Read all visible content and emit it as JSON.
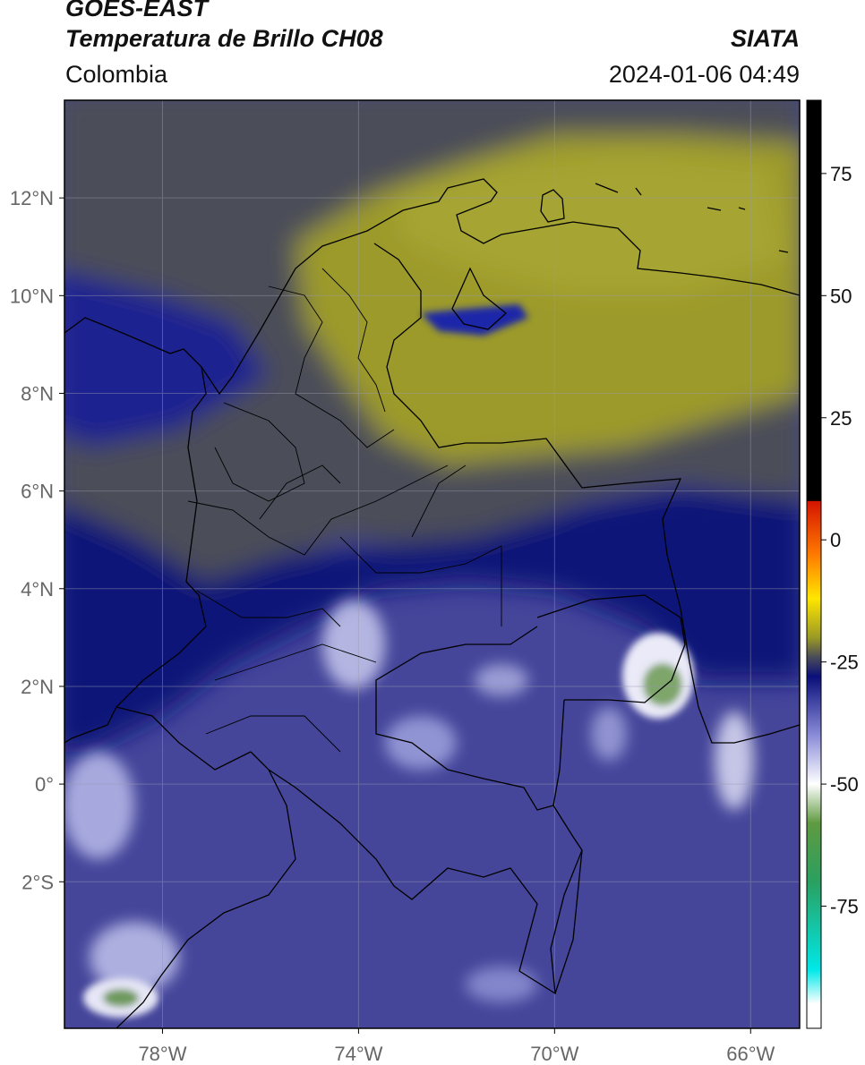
{
  "header": {
    "satellite": "GOES-EAST",
    "product": "Temperatura de Brillo CH08",
    "organization": "SIATA",
    "region": "Colombia",
    "timestamp": "2024-01-06 04:49"
  },
  "map": {
    "lon_range": [
      -80,
      -65
    ],
    "lat_range": [
      -5,
      14
    ],
    "lat_ticks": [
      {
        "value": 12,
        "label": "12°N"
      },
      {
        "value": 10,
        "label": "10°N"
      },
      {
        "value": 8,
        "label": "8°N"
      },
      {
        "value": 6,
        "label": "6°N"
      },
      {
        "value": 4,
        "label": "4°N"
      },
      {
        "value": 2,
        "label": "2°N"
      },
      {
        "value": 0,
        "label": "0°"
      },
      {
        "value": -2,
        "label": "2°S"
      }
    ],
    "lon_ticks": [
      {
        "value": -78,
        "label": "78°W"
      },
      {
        "value": -74,
        "label": "74°W"
      },
      {
        "value": -70,
        "label": "70°W"
      },
      {
        "value": -66,
        "label": "66°W"
      }
    ],
    "colors": {
      "warm_north": "#9c9a2c",
      "mid_gray": "#4b4d59",
      "deep_blue": "#0a1378",
      "south_purple": "#45469a",
      "cloud_white": "#e6e6f6",
      "cold_green": "#6e9a5c"
    }
  },
  "colorbar": {
    "min": -100,
    "max": 90,
    "ticks": [
      {
        "value": 75,
        "label": "75"
      },
      {
        "value": 50,
        "label": "50"
      },
      {
        "value": 25,
        "label": "25"
      },
      {
        "value": 0,
        "label": "0"
      },
      {
        "value": -25,
        "label": "-25"
      },
      {
        "value": -50,
        "label": "-50"
      },
      {
        "value": -75,
        "label": "-75"
      }
    ],
    "stops": [
      {
        "value": 90,
        "color": "#000000"
      },
      {
        "value": 8,
        "color": "#000000"
      },
      {
        "value": 7.9,
        "color": "#d41400"
      },
      {
        "value": -3,
        "color": "#ff7a00"
      },
      {
        "value": -12,
        "color": "#ffe600"
      },
      {
        "value": -20,
        "color": "#9a9a25"
      },
      {
        "value": -24,
        "color": "#4a4c58"
      },
      {
        "value": -28,
        "color": "#0a0f7a"
      },
      {
        "value": -40,
        "color": "#8a8cd8"
      },
      {
        "value": -50,
        "color": "#ffffff"
      },
      {
        "value": -58,
        "color": "#5f9a40"
      },
      {
        "value": -70,
        "color": "#2aa060"
      },
      {
        "value": -88,
        "color": "#00e8e8"
      },
      {
        "value": -95,
        "color": "#ffffff"
      },
      {
        "value": -100,
        "color": "#ffffff"
      }
    ]
  }
}
